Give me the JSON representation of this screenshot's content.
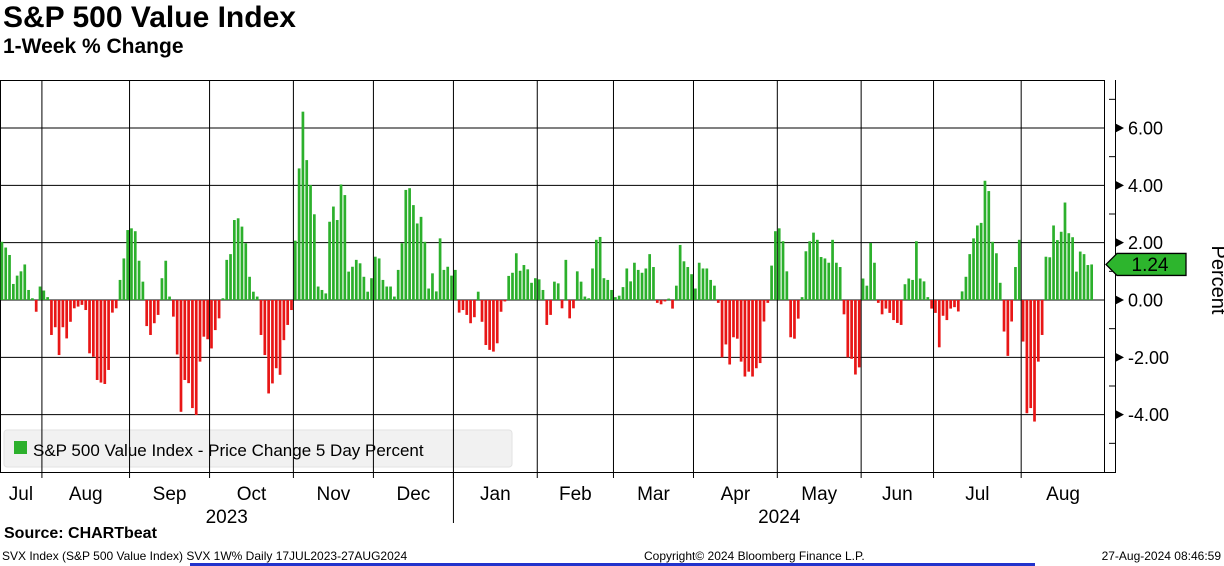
{
  "header": {
    "title": "S&P 500 Value Index",
    "subtitle": "1-Week % Change"
  },
  "source_line": "Source: CHARTbeat",
  "footer": {
    "left": "SVX Index (S&P 500 Value Index) SVX 1W%  Daily 17JUL2023-27AUG2024",
    "center": "Copyright© 2024 Bloomberg Finance L.P.",
    "right": "27-Aug-2024 08:46:59"
  },
  "legend": {
    "swatch_icon": "green-square-icon",
    "label": "S&P 500 Value Index - Price Change 5 Day Percent"
  },
  "chart_data": {
    "type": "bar",
    "title": "S&P 500 Value Index",
    "subtitle": "1-Week % Change",
    "ylabel": "Percent",
    "y_tick_labels": [
      "6.00",
      "4.00",
      "2.00",
      "0.00",
      "-2.00",
      "-4.00"
    ],
    "y_tick_values": [
      6,
      4,
      2,
      0,
      -2,
      -4
    ],
    "y_minor_tick_values": [
      7,
      5,
      3,
      1,
      -1,
      -3,
      -5
    ],
    "ylim": [
      -6.03,
      7.67
    ],
    "last_price": "1.24",
    "last_price_value": 1.24,
    "period": "Daily",
    "date_range": "17JUL2023-27AUG2024",
    "month_labels": [
      "Jul",
      "Aug",
      "Sep",
      "Oct",
      "Nov",
      "Dec",
      "Jan",
      "Feb",
      "Mar",
      "Apr",
      "May",
      "Jun",
      "Jul",
      "Aug"
    ],
    "year_labels": [
      "2023",
      "2024"
    ],
    "month_boundaries_td": [
      11,
      34,
      55,
      77,
      98,
      119,
      141,
      161,
      182,
      204,
      226,
      245,
      268
    ],
    "total_slots": 290,
    "year_divider_td": 119,
    "colors": {
      "up": "#2cb02c",
      "down": "#e81616",
      "grid": "#000000",
      "tag_fill": "#2db52d"
    },
    "values": [
      2.03,
      1.83,
      1.57,
      0.56,
      0.85,
      1.0,
      1.24,
      0.35,
      0.06,
      -0.41,
      0.47,
      0.33,
      0.1,
      -1.22,
      -0.95,
      -1.92,
      -0.95,
      -1.34,
      -0.76,
      -0.29,
      -0.23,
      -0.17,
      -0.35,
      -1.86,
      -1.98,
      -2.79,
      -2.88,
      -2.93,
      -2.44,
      -0.44,
      -0.29,
      0.7,
      1.45,
      2.44,
      2.5,
      2.4,
      1.37,
      0.64,
      -0.91,
      -1.22,
      -0.81,
      -0.52,
      0.76,
      1.37,
      0.12,
      -0.58,
      -1.9,
      -3.9,
      -2.79,
      -2.9,
      -3.77,
      -4.01,
      -2.15,
      -1.28,
      -1.37,
      -1.69,
      -1.05,
      -0.64,
      0.06,
      1.4,
      1.6,
      2.79,
      2.85,
      2.56,
      1.98,
      0.81,
      0.29,
      0.12,
      -1.22,
      -1.92,
      -3.26,
      -2.91,
      -2.38,
      -2.61,
      -1.4,
      -0.87,
      -0.35,
      2.07,
      4.59,
      6.57,
      4.88,
      4.01,
      2.99,
      0.47,
      0.35,
      0.23,
      2.73,
      3.26,
      2.79,
      4.03,
      3.66,
      0.99,
      1.16,
      1.4,
      1.28,
      0.81,
      0.29,
      0.76,
      1.51,
      1.45,
      0.7,
      0.47,
      0.47,
      0.12,
      1.05,
      1.98,
      3.84,
      3.9,
      3.31,
      2.67,
      2.9,
      2.03,
      0.4,
      0.93,
      0.3,
      2.15,
      1.05,
      1.16,
      0.85,
      1.05,
      -0.44,
      -0.35,
      -0.52,
      -0.81,
      -0.6,
      0.29,
      -0.76,
      -1.57,
      -1.74,
      -1.8,
      -1.51,
      -0.41,
      -0.05,
      0.84,
      0.95,
      1.63,
      1.02,
      1.22,
      1.07,
      0.6,
      0.76,
      0.72,
      0.35,
      -0.87,
      -0.52,
      0.64,
      0.58,
      -0.29,
      1.4,
      -0.64,
      -0.29,
      1.0,
      0.64,
      0.12,
      0.06,
      1.1,
      2.1,
      2.2,
      0.76,
      0.7,
      0.35,
      0.1,
      0.15,
      0.45,
      1.1,
      0.65,
      1.3,
      1.05,
      0.95,
      1.1,
      1.6,
      1.15,
      -0.1,
      -0.15,
      -0.05,
      0.05,
      -0.3,
      0.5,
      1.92,
      1.35,
      1.15,
      0.9,
      0.4,
      1.3,
      1.1,
      1.1,
      0.7,
      0.5,
      -0.1,
      -2.0,
      -1.55,
      -2.25,
      -1.3,
      -1.35,
      -2.15,
      -2.67,
      -2.5,
      -2.67,
      -2.38,
      -2.2,
      -0.75,
      -0.1,
      1.2,
      2.4,
      2.5,
      2.05,
      1.0,
      -1.3,
      -1.35,
      -0.65,
      0.1,
      1.7,
      2.05,
      2.35,
      2.1,
      1.5,
      1.45,
      1.3,
      2.1,
      1.3,
      1.15,
      -0.5,
      -2.0,
      -2.05,
      -2.6,
      -2.35,
      0.75,
      0.5,
      1.99,
      1.3,
      -0.1,
      -0.5,
      -0.3,
      -0.45,
      -0.7,
      -0.8,
      -0.87,
      0.55,
      0.75,
      0.7,
      2.05,
      0.75,
      0.65,
      0.1,
      -0.3,
      -0.45,
      -1.65,
      -0.55,
      -0.7,
      -0.3,
      -0.25,
      -0.4,
      0.3,
      0.81,
      1.6,
      2.15,
      2.6,
      2.69,
      4.16,
      3.8,
      2.03,
      1.63,
      0.6,
      -1.1,
      -1.95,
      -0.75,
      1.15,
      2.1,
      -1.45,
      -3.95,
      -3.77,
      -4.24,
      -2.15,
      -1.22,
      1.51,
      1.49,
      2.6,
      2.09,
      2.38,
      3.4,
      2.33,
      2.19,
      0.99,
      1.69,
      1.6,
      1.22,
      1.24
    ]
  }
}
